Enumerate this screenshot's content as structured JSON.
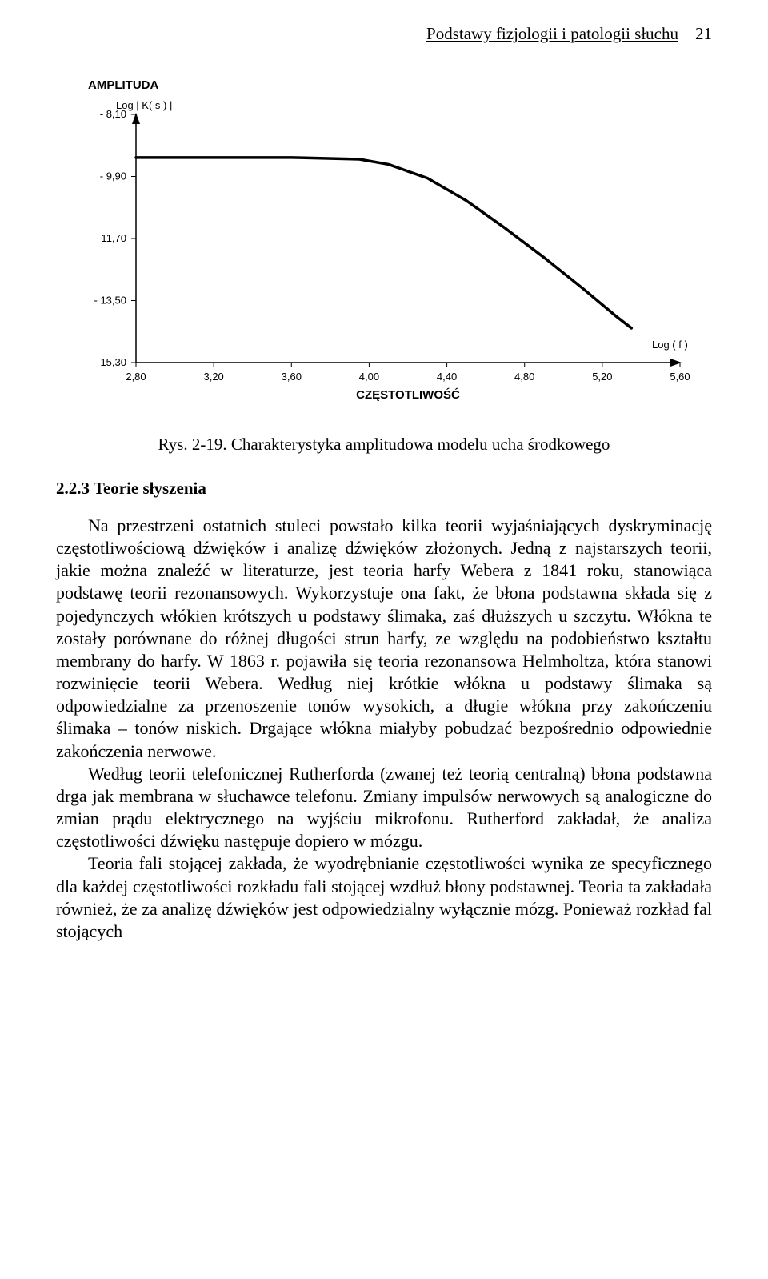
{
  "header": {
    "title": "Podstawy fizjologii i patologii słuchu",
    "page_number": "21"
  },
  "chart": {
    "type": "line",
    "amplitude_label": "AMPLITUDA",
    "ylabel": "Log | K( s ) |",
    "xlabel_bottom": "CZĘSTOTLIWOŚĆ",
    "xlabel_right": "Log ( f )",
    "background_color": "#ffffff",
    "axis_color": "#000000",
    "line_color": "#000000",
    "line_width": 3.5,
    "tick_line_width": 1,
    "axis_font_size": 13,
    "label_font_size": 13,
    "amplitude_font_size": 15,
    "amplitude_font_weight": "bold",
    "x_ticks": [
      "2,80",
      "3,20",
      "3,60",
      "4,00",
      "4,40",
      "4,80",
      "5,20",
      "5,60"
    ],
    "y_ticks": [
      "- 8,10",
      "- 9,90",
      "- 11,70",
      "- 13,50",
      "- 15,30"
    ],
    "xlim": [
      2.8,
      5.6
    ],
    "ylim": [
      -15.3,
      -8.1
    ],
    "curve_points": [
      [
        2.8,
        -9.35
      ],
      [
        3.2,
        -9.35
      ],
      [
        3.6,
        -9.35
      ],
      [
        3.95,
        -9.4
      ],
      [
        4.1,
        -9.55
      ],
      [
        4.3,
        -9.95
      ],
      [
        4.5,
        -10.6
      ],
      [
        4.7,
        -11.4
      ],
      [
        4.9,
        -12.25
      ],
      [
        5.1,
        -13.15
      ],
      [
        5.27,
        -13.95
      ],
      [
        5.35,
        -14.3
      ]
    ]
  },
  "caption": "Rys. 2-19.  Charakterystyka amplitudowa modelu ucha środkowego",
  "section_heading": "2.2.3 Teorie słyszenia",
  "paragraphs": {
    "p1": "Na   przestrzeni ostatnich stuleci powstało kilka teorii wyjaśniających dyskryminację częstotliwościową dźwięków i analizę dźwięków złożonych. Jedną z najstarszych teorii, jakie można znaleźć w literaturze,  jest teoria harfy Webera z 1841 roku, stanowiąca podstawę teorii rezonansowych. Wykorzystuje ona fakt, że błona podstawna składa się z pojedynczych włókien krótszych u podstawy ślimaka, zaś dłuższych u szczytu. Włókna te zostały porównane do różnej długości strun harfy, ze względu na podobieństwo kształtu membrany do harfy. W 1863 r. pojawiła się teoria rezonansowa Helmholtza, która stanowi rozwinięcie teorii Webera. Według niej krótkie włókna u podstawy ślimaka są odpowiedzialne za przenoszenie tonów wysokich, a długie włókna przy zakończeniu ślimaka – tonów niskich. Drgające włókna miałyby pobudzać bezpośrednio odpowiednie zakończenia nerwowe.",
    "p2": "Według teorii telefonicznej Rutherforda (zwanej też teorią centralną) błona podstawna drga jak membrana w słuchawce telefonu. Zmiany impulsów nerwowych są analogiczne do zmian prądu elektrycznego na wyjściu mikrofonu. Rutherford zakładał, że analiza częstotliwości dźwięku następuje dopiero w mózgu.",
    "p3": "Teoria fali stojącej zakłada, że wyodrębnianie częstotliwości wynika ze specyficznego dla każdej częstotliwości rozkładu fali stojącej wzdłuż błony podstawnej. Teoria ta zakładała również, że za analizę dźwięków jest odpowiedzialny  wyłącznie  mózg.   Ponieważ  rozkład  fal  stojących"
  }
}
